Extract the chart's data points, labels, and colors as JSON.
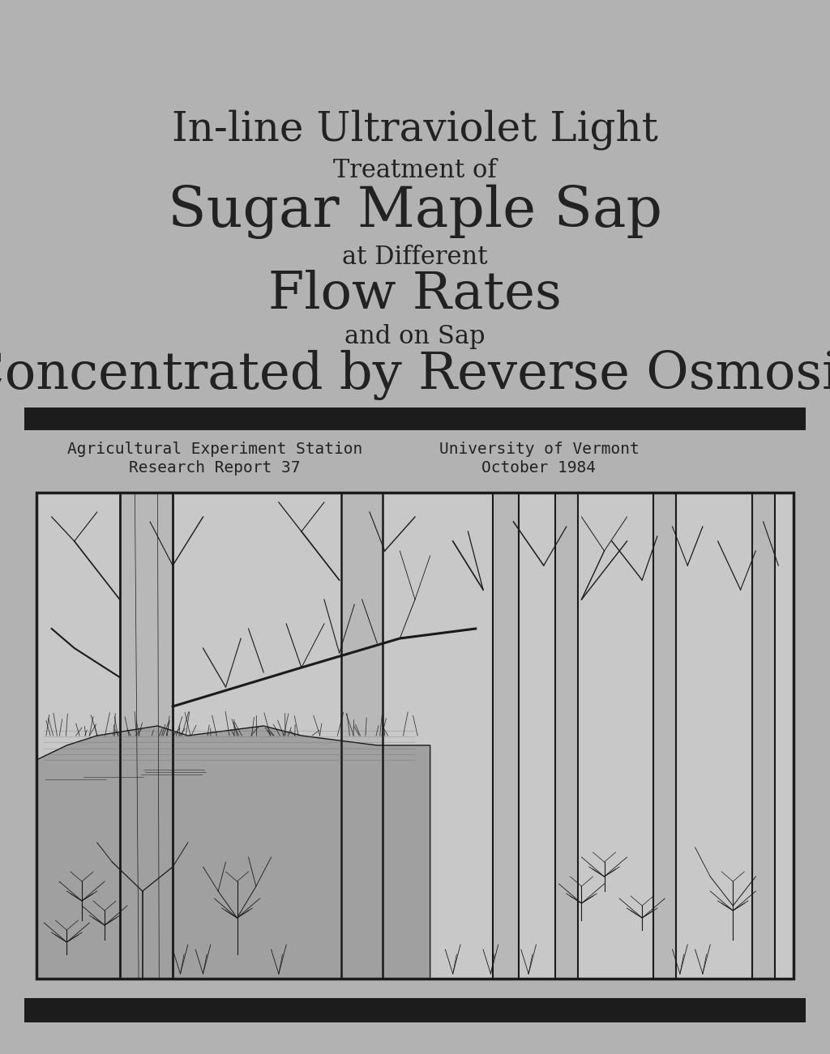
{
  "bg_color": "#b2b2b2",
  "title_line1": "In-line Ultraviolet Light",
  "title_line2": "Treatment of",
  "title_line3": "Sugar Maple Sap",
  "title_line4": "at Different",
  "title_line5": "Flow Rates",
  "title_line6": "and on Sap",
  "title_line7": "Concentrated by Reverse Osmosis",
  "subtitle_left1": "Agricultural Experiment Station",
  "subtitle_left2": "Research Report 37",
  "subtitle_right1": "University of Vermont",
  "subtitle_right2": "October 1984",
  "text_color": "#222222",
  "bar_color": "#1c1c1c",
  "line1_fs": 36,
  "line2_fs": 22,
  "line3_fs": 50,
  "line4_fs": 22,
  "line5_fs": 46,
  "line6_fs": 22,
  "line7_fs": 46,
  "subtitle_fs": 14,
  "img_fc": "#c8c8c8"
}
